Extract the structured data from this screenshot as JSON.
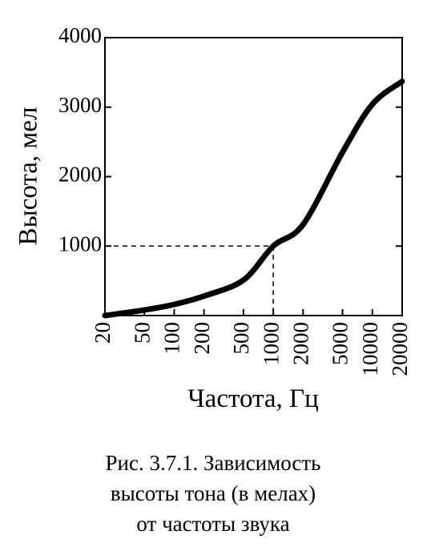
{
  "chart_data": {
    "type": "line",
    "x_label": "Частота, Гц",
    "y_label": "Высота, мел",
    "caption": [
      "Рис. 3.7.1. Зависимость",
      "высоты тона (в мелах)",
      "от частоты звука"
    ],
    "x": [
      20,
      50,
      100,
      200,
      500,
      1000,
      2000,
      5000,
      10000,
      20000
    ],
    "series": [
      {
        "color": "#000000",
        "values": [
          0,
          80,
          160,
          280,
          510,
          1000,
          1310,
          2350,
          3040,
          3370
        ]
      }
    ],
    "xscale": "log",
    "xlim": [
      20,
      20000
    ],
    "xticks": [
      20,
      50,
      100,
      200,
      500,
      1000,
      2000,
      5000,
      10000,
      20000
    ],
    "ylim": [
      0,
      4000
    ],
    "yticks": [
      1000,
      2000,
      3000,
      4000
    ],
    "guide_x": 1000,
    "guide_y": 1000
  }
}
